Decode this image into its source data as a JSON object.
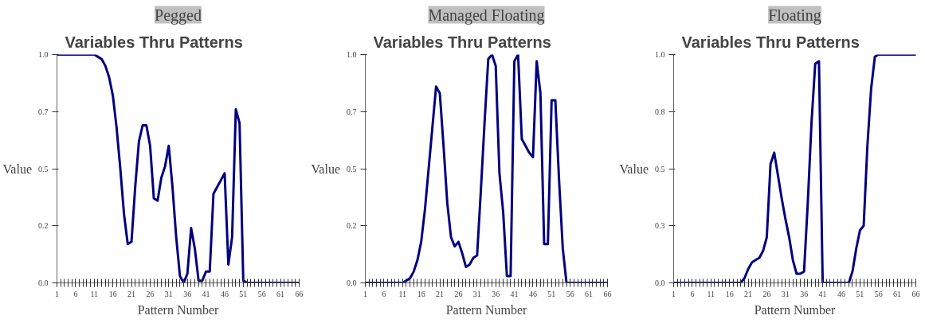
{
  "chart_data": [
    {
      "type": "line",
      "subtitle": "Pegged",
      "title": "Variables Thru Patterns",
      "xlabel": "Pattern Number",
      "ylabel": "Value",
      "x": [
        1,
        2,
        3,
        4,
        5,
        6,
        7,
        8,
        9,
        10,
        11,
        12,
        13,
        14,
        15,
        16,
        17,
        18,
        19,
        20,
        21,
        22,
        23,
        24,
        25,
        26,
        27,
        28,
        29,
        30,
        31,
        32,
        33,
        34,
        35,
        36,
        37,
        38,
        39,
        40,
        41,
        42,
        43,
        44,
        45,
        46,
        47,
        48,
        49,
        50,
        51,
        52,
        53,
        54,
        55,
        56,
        57,
        58,
        59,
        60,
        61,
        62,
        63,
        64,
        65,
        66
      ],
      "series": [
        {
          "color": "#000080",
          "values": [
            1,
            1,
            1,
            1,
            1,
            1,
            1,
            1,
            1,
            1,
            1,
            0.99,
            0.98,
            0.95,
            0.9,
            0.82,
            0.68,
            0.5,
            0.3,
            0.17,
            0.18,
            0.42,
            0.62,
            0.69,
            0.69,
            0.6,
            0.37,
            0.36,
            0.46,
            0.51,
            0.6,
            0.42,
            0.2,
            0.03,
            0,
            0.04,
            0.24,
            0.15,
            0.01,
            0.01,
            0.05,
            0.05,
            0.39,
            0.42,
            0.45,
            0.48,
            0.08,
            0.2,
            0.76,
            0.7,
            0.01,
            0,
            0,
            0,
            0,
            0,
            0,
            0,
            0,
            0,
            0,
            0,
            0,
            0,
            0,
            0
          ]
        }
      ],
      "xlim": [
        1,
        66
      ],
      "xticks": [
        1,
        6,
        11,
        16,
        21,
        26,
        31,
        36,
        41,
        46,
        51,
        56,
        61,
        66
      ],
      "ylim": [
        0,
        1
      ],
      "yticks": [
        {
          "value": 0,
          "label": "0.0"
        },
        {
          "value": 0.25,
          "label": "0.2"
        },
        {
          "value": 0.5,
          "label": "0.5"
        },
        {
          "value": 0.75,
          "label": "0.7"
        },
        {
          "value": 1,
          "label": "1.0"
        }
      ]
    },
    {
      "type": "line",
      "subtitle": "Managed Floating",
      "title": "Variables Thru Patterns",
      "xlabel": "Pattern Number",
      "ylabel": "Value",
      "x": [
        1,
        2,
        3,
        4,
        5,
        6,
        7,
        8,
        9,
        10,
        11,
        12,
        13,
        14,
        15,
        16,
        17,
        18,
        19,
        20,
        21,
        22,
        23,
        24,
        25,
        26,
        27,
        28,
        29,
        30,
        31,
        32,
        33,
        34,
        35,
        36,
        37,
        38,
        39,
        40,
        41,
        42,
        43,
        44,
        45,
        46,
        47,
        48,
        49,
        50,
        51,
        52,
        53,
        54,
        55,
        56,
        57,
        58,
        59,
        60,
        61,
        62,
        63,
        64,
        65,
        66
      ],
      "series": [
        {
          "color": "#000080",
          "values": [
            0,
            0,
            0,
            0,
            0,
            0,
            0,
            0,
            0,
            0,
            0,
            0.01,
            0.02,
            0.05,
            0.1,
            0.18,
            0.32,
            0.5,
            0.68,
            0.86,
            0.83,
            0.6,
            0.35,
            0.2,
            0.16,
            0.18,
            0.13,
            0.07,
            0.08,
            0.11,
            0.12,
            0.4,
            0.7,
            0.98,
            1,
            0.95,
            0.48,
            0.31,
            0.03,
            0.03,
            0.97,
            1,
            0.63,
            0.6,
            0.57,
            0.55,
            0.97,
            0.83,
            0.17,
            0.17,
            0.8,
            0.8,
            0.45,
            0.15,
            0,
            0,
            0,
            0,
            0,
            0,
            0,
            0,
            0,
            0,
            0,
            0
          ]
        }
      ],
      "xlim": [
        1,
        66
      ],
      "xticks": [
        1,
        6,
        11,
        16,
        21,
        26,
        31,
        36,
        41,
        46,
        51,
        56,
        61,
        66
      ],
      "ylim": [
        0,
        1
      ],
      "yticks": [
        {
          "value": 0,
          "label": "0.0"
        },
        {
          "value": 0.25,
          "label": "0.2"
        },
        {
          "value": 0.5,
          "label": "0.5"
        },
        {
          "value": 0.75,
          "label": "0.7"
        },
        {
          "value": 1,
          "label": "1.0"
        }
      ]
    },
    {
      "type": "line",
      "subtitle": "Floating",
      "title": "Variables Thru Patterns",
      "xlabel": "Pattern Number",
      "ylabel": "Value",
      "x": [
        1,
        2,
        3,
        4,
        5,
        6,
        7,
        8,
        9,
        10,
        11,
        12,
        13,
        14,
        15,
        16,
        17,
        18,
        19,
        20,
        21,
        22,
        23,
        24,
        25,
        26,
        27,
        28,
        29,
        30,
        31,
        32,
        33,
        34,
        35,
        36,
        37,
        38,
        39,
        40,
        41,
        42,
        43,
        44,
        45,
        46,
        47,
        48,
        49,
        50,
        51,
        52,
        53,
        54,
        55,
        56,
        57,
        58,
        59,
        60,
        61,
        62,
        63,
        64,
        65,
        66
      ],
      "series": [
        {
          "color": "#000080",
          "values": [
            0,
            0,
            0,
            0,
            0,
            0,
            0,
            0,
            0,
            0,
            0,
            0,
            0,
            0,
            0,
            0,
            0,
            0,
            0,
            0.02,
            0.06,
            0.09,
            0.1,
            0.11,
            0.14,
            0.2,
            0.52,
            0.57,
            0.47,
            0.37,
            0.28,
            0.2,
            0.1,
            0.04,
            0.04,
            0.05,
            0.35,
            0.7,
            0.96,
            0.97,
            0,
            0,
            0,
            0,
            0,
            0,
            0,
            0,
            0.05,
            0.15,
            0.23,
            0.25,
            0.6,
            0.85,
            0.99,
            1,
            1,
            1,
            1,
            1,
            1,
            1,
            1,
            1,
            1,
            1
          ]
        }
      ],
      "xlim": [
        1,
        66
      ],
      "xticks": [
        1,
        6,
        11,
        16,
        21,
        26,
        31,
        36,
        41,
        46,
        51,
        56,
        61,
        66
      ],
      "ylim": [
        0,
        1
      ],
      "yticks": [
        {
          "value": 0,
          "label": "0.0"
        },
        {
          "value": 0.25,
          "label": "0.3"
        },
        {
          "value": 0.5,
          "label": "0.5"
        },
        {
          "value": 0.75,
          "label": "0.8"
        },
        {
          "value": 1,
          "label": "1.0"
        }
      ]
    }
  ]
}
